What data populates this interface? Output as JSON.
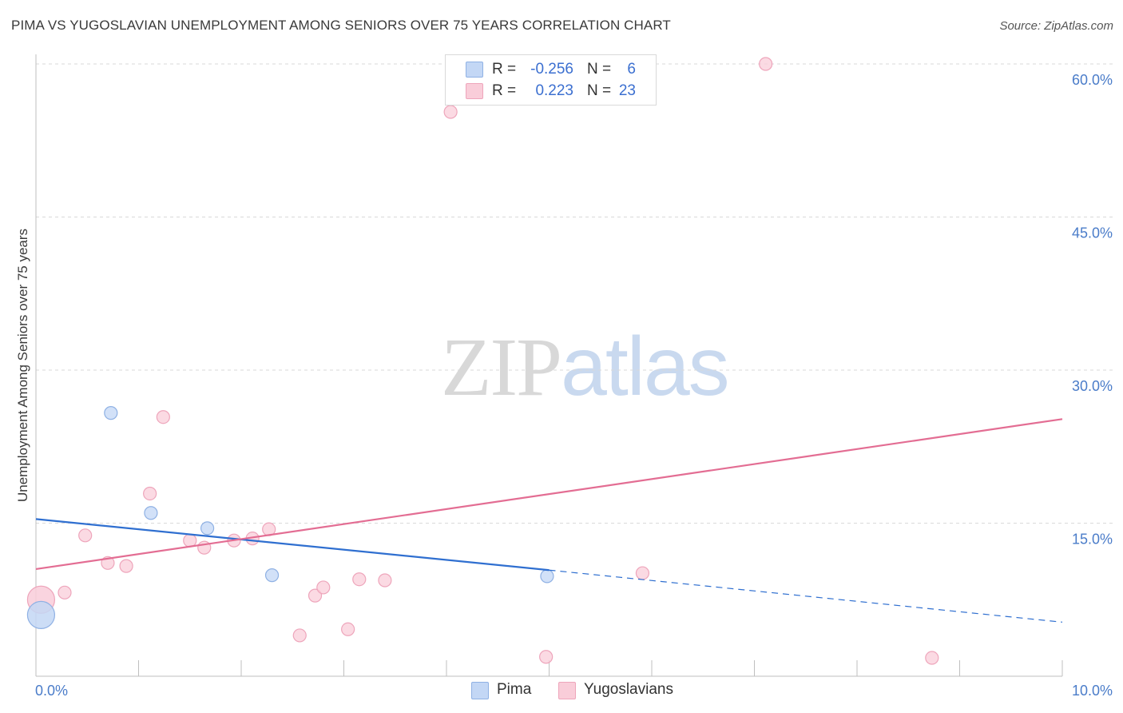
{
  "header": {
    "title": "PIMA VS YUGOSLAVIAN UNEMPLOYMENT AMONG SENIORS OVER 75 YEARS CORRELATION CHART",
    "source": "Source: ZipAtlas.com"
  },
  "watermark": {
    "zip": "ZIP",
    "atlas": "atlas"
  },
  "legend": {
    "r_label": "R =",
    "n_label": "N =",
    "rows": [
      {
        "name": "Pima",
        "r": "-0.256",
        "n": "6"
      },
      {
        "name": "Yugoslavians",
        "r": "0.223",
        "n": "23"
      }
    ]
  },
  "colors": {
    "pima_fill": "#c3d7f5",
    "pima_stroke": "#8fb1e4",
    "pima_line": "#2f6fd0",
    "yugo_fill": "#f9cdd9",
    "yugo_stroke": "#eea5bb",
    "yugo_line": "#e36d93",
    "grid": "#d9d9d9",
    "axis": "#bfbfbf",
    "tick_label": "#4a7cc9"
  },
  "chart_data": {
    "type": "scatter",
    "title": "PIMA VS YUGOSLAVIAN UNEMPLOYMENT AMONG SENIORS OVER 75 YEARS CORRELATION CHART",
    "xlabel": "",
    "ylabel": "Unemployment Among Seniors over 75 years",
    "xlim": [
      0,
      10
    ],
    "ylim": [
      0,
      62
    ],
    "x_tick_labels": [
      {
        "value": 0,
        "label": "0.0%"
      },
      {
        "value": 10,
        "label": "10.0%"
      }
    ],
    "y_tick_labels": [
      {
        "value": 15,
        "label": "15.0%"
      },
      {
        "value": 30,
        "label": "30.0%"
      },
      {
        "value": 45,
        "label": "45.0%"
      },
      {
        "value": 60,
        "label": "60.0%"
      }
    ],
    "grid": true,
    "series": [
      {
        "name": "Pima",
        "points": [
          {
            "x": 0.05,
            "y": 6.0,
            "big": true
          },
          {
            "x": 0.73,
            "y": 25.8
          },
          {
            "x": 1.12,
            "y": 16.0
          },
          {
            "x": 1.67,
            "y": 14.5
          },
          {
            "x": 2.3,
            "y": 9.9
          },
          {
            "x": 4.98,
            "y": 9.8
          }
        ],
        "trend": {
          "x0": 0,
          "y0": 15.4,
          "x1": 5.0,
          "y1": 10.4,
          "dash_to_x": 10.0,
          "dash_to_y": 5.3
        }
      },
      {
        "name": "Yugoslavians",
        "points": [
          {
            "x": 0.05,
            "y": 7.5,
            "big": true
          },
          {
            "x": 0.28,
            "y": 8.2
          },
          {
            "x": 0.48,
            "y": 13.8
          },
          {
            "x": 0.7,
            "y": 11.1
          },
          {
            "x": 0.88,
            "y": 10.8
          },
          {
            "x": 1.11,
            "y": 17.9
          },
          {
            "x": 1.24,
            "y": 25.4
          },
          {
            "x": 1.5,
            "y": 13.3
          },
          {
            "x": 1.64,
            "y": 12.6
          },
          {
            "x": 1.93,
            "y": 13.3
          },
          {
            "x": 2.11,
            "y": 13.5
          },
          {
            "x": 2.27,
            "y": 14.4
          },
          {
            "x": 2.57,
            "y": 4.0
          },
          {
            "x": 2.72,
            "y": 7.9
          },
          {
            "x": 2.8,
            "y": 8.7
          },
          {
            "x": 3.04,
            "y": 4.6
          },
          {
            "x": 3.15,
            "y": 9.5
          },
          {
            "x": 3.4,
            "y": 9.4
          },
          {
            "x": 4.04,
            "y": 55.3
          },
          {
            "x": 4.97,
            "y": 1.9
          },
          {
            "x": 5.91,
            "y": 10.1
          },
          {
            "x": 7.11,
            "y": 60.0
          },
          {
            "x": 8.73,
            "y": 1.8
          }
        ],
        "trend": {
          "x0": 0,
          "y0": 10.5,
          "x1": 10.0,
          "y1": 25.2
        }
      }
    ]
  }
}
